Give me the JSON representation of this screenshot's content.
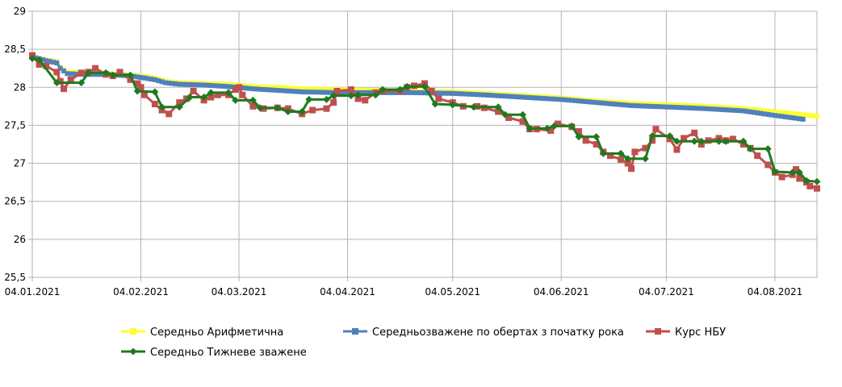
{
  "chart_data": {
    "type": "line",
    "title": "",
    "xlabel": "",
    "ylabel": "",
    "ylim": [
      25.5,
      29
    ],
    "y_ticks": [
      "25,5",
      "26",
      "26,5",
      "27",
      "27,5",
      "28",
      "28,5",
      "29"
    ],
    "y_tick_values": [
      25.5,
      26,
      26.5,
      27,
      27.5,
      28,
      28.5,
      29
    ],
    "x_range": [
      "2021-01-04",
      "2021-08-16"
    ],
    "x_ticks": [
      "04.01.2021",
      "04.02.2021",
      "04.03.2021",
      "04.04.2021",
      "04.05.2021",
      "04.06.2021",
      "04.07.2021",
      "04.08.2021"
    ],
    "x_tick_dates": [
      "2021-01-04",
      "2021-02-04",
      "2021-03-04",
      "2021-04-04",
      "2021-05-04",
      "2021-06-04",
      "2021-07-04",
      "2021-08-04"
    ],
    "grid": true,
    "legend_position": "bottom",
    "series": [
      {
        "name": "Середньо Арифметична",
        "color": "#ffff33",
        "marker": "square",
        "points": [
          [
            "2021-01-04",
            28.4
          ],
          [
            "2021-01-08",
            28.36
          ],
          [
            "2021-01-11",
            28.34
          ],
          [
            "2021-01-12",
            28.26
          ],
          [
            "2021-01-14",
            28.2
          ],
          [
            "2021-01-18",
            28.19
          ],
          [
            "2021-01-25",
            28.18
          ],
          [
            "2021-02-01",
            28.16
          ],
          [
            "2021-02-04",
            28.15
          ],
          [
            "2021-02-08",
            28.12
          ],
          [
            "2021-02-11",
            28.08
          ],
          [
            "2021-02-15",
            28.06
          ],
          [
            "2021-02-22",
            28.05
          ],
          [
            "2021-03-01",
            28.04
          ],
          [
            "2021-03-08",
            28.01
          ],
          [
            "2021-03-15",
            28.0
          ],
          [
            "2021-03-22",
            27.98
          ],
          [
            "2021-04-01",
            27.97
          ],
          [
            "2021-04-12",
            27.96
          ],
          [
            "2021-04-22",
            27.95
          ],
          [
            "2021-05-04",
            27.94
          ],
          [
            "2021-05-13",
            27.92
          ],
          [
            "2021-05-24",
            27.89
          ],
          [
            "2021-06-04",
            27.86
          ],
          [
            "2021-06-14",
            27.82
          ],
          [
            "2021-06-24",
            27.79
          ],
          [
            "2021-07-05",
            27.77
          ],
          [
            "2021-07-15",
            27.75
          ],
          [
            "2021-07-26",
            27.72
          ],
          [
            "2021-08-04",
            27.68
          ],
          [
            "2021-08-12",
            27.64
          ],
          [
            "2021-08-16",
            27.62
          ]
        ]
      },
      {
        "name": "Середньозважене по обертах з початку рока",
        "color": "#4f81bd",
        "marker": "square",
        "points": [
          [
            "2021-01-04",
            28.4
          ],
          [
            "2021-01-08",
            28.35
          ],
          [
            "2021-01-11",
            28.32
          ],
          [
            "2021-01-12",
            28.25
          ],
          [
            "2021-01-14",
            28.18
          ],
          [
            "2021-01-18",
            28.17
          ],
          [
            "2021-01-25",
            28.17
          ],
          [
            "2021-02-01",
            28.15
          ],
          [
            "2021-02-04",
            28.13
          ],
          [
            "2021-02-08",
            28.1
          ],
          [
            "2021-02-11",
            28.06
          ],
          [
            "2021-02-15",
            28.04
          ],
          [
            "2021-02-22",
            28.03
          ],
          [
            "2021-03-01",
            28.01
          ],
          [
            "2021-03-08",
            27.98
          ],
          [
            "2021-03-15",
            27.96
          ],
          [
            "2021-03-22",
            27.94
          ],
          [
            "2021-04-01",
            27.93
          ],
          [
            "2021-04-12",
            27.93
          ],
          [
            "2021-04-22",
            27.93
          ],
          [
            "2021-05-04",
            27.92
          ],
          [
            "2021-05-13",
            27.9
          ],
          [
            "2021-05-24",
            27.87
          ],
          [
            "2021-06-04",
            27.84
          ],
          [
            "2021-06-14",
            27.8
          ],
          [
            "2021-06-24",
            27.76
          ],
          [
            "2021-07-05",
            27.74
          ],
          [
            "2021-07-15",
            27.72
          ],
          [
            "2021-07-26",
            27.69
          ],
          [
            "2021-08-04",
            27.63
          ],
          [
            "2021-08-12",
            27.58
          ]
        ]
      },
      {
        "name": "Курс НБУ",
        "color": "#c0504d",
        "marker": "square",
        "points": [
          [
            "2021-01-04",
            28.42
          ],
          [
            "2021-01-06",
            28.3
          ],
          [
            "2021-01-08",
            28.28
          ],
          [
            "2021-01-11",
            28.2
          ],
          [
            "2021-01-12",
            28.08
          ],
          [
            "2021-01-13",
            27.98
          ],
          [
            "2021-01-15",
            28.1
          ],
          [
            "2021-01-18",
            28.19
          ],
          [
            "2021-01-20",
            28.2
          ],
          [
            "2021-01-22",
            28.25
          ],
          [
            "2021-01-25",
            28.17
          ],
          [
            "2021-01-27",
            28.15
          ],
          [
            "2021-01-29",
            28.2
          ],
          [
            "2021-02-01",
            28.1
          ],
          [
            "2021-02-03",
            28.05
          ],
          [
            "2021-02-04",
            28.0
          ],
          [
            "2021-02-05",
            27.9
          ],
          [
            "2021-02-08",
            27.78
          ],
          [
            "2021-02-10",
            27.7
          ],
          [
            "2021-02-12",
            27.65
          ],
          [
            "2021-02-15",
            27.8
          ],
          [
            "2021-02-17",
            27.85
          ],
          [
            "2021-02-19",
            27.95
          ],
          [
            "2021-02-22",
            27.83
          ],
          [
            "2021-02-24",
            27.87
          ],
          [
            "2021-02-26",
            27.9
          ],
          [
            "2021-03-01",
            27.9
          ],
          [
            "2021-03-03",
            27.97
          ],
          [
            "2021-03-04",
            28.0
          ],
          [
            "2021-03-05",
            27.9
          ],
          [
            "2021-03-08",
            27.75
          ],
          [
            "2021-03-11",
            27.72
          ],
          [
            "2021-03-15",
            27.73
          ],
          [
            "2021-03-18",
            27.72
          ],
          [
            "2021-03-22",
            27.65
          ],
          [
            "2021-03-25",
            27.7
          ],
          [
            "2021-03-29",
            27.72
          ],
          [
            "2021-03-31",
            27.8
          ],
          [
            "2021-04-01",
            27.95
          ],
          [
            "2021-04-05",
            27.97
          ],
          [
            "2021-04-07",
            27.85
          ],
          [
            "2021-04-09",
            27.83
          ],
          [
            "2021-04-12",
            27.93
          ],
          [
            "2021-04-14",
            27.95
          ],
          [
            "2021-04-19",
            27.95
          ],
          [
            "2021-04-21",
            28.0
          ],
          [
            "2021-04-23",
            28.02
          ],
          [
            "2021-04-26",
            28.05
          ],
          [
            "2021-04-28",
            27.95
          ],
          [
            "2021-04-30",
            27.85
          ],
          [
            "2021-05-04",
            27.8
          ],
          [
            "2021-05-07",
            27.75
          ],
          [
            "2021-05-11",
            27.75
          ],
          [
            "2021-05-13",
            27.73
          ],
          [
            "2021-05-17",
            27.68
          ],
          [
            "2021-05-20",
            27.6
          ],
          [
            "2021-05-24",
            27.55
          ],
          [
            "2021-05-26",
            27.45
          ],
          [
            "2021-05-28",
            27.45
          ],
          [
            "2021-06-01",
            27.43
          ],
          [
            "2021-06-03",
            27.52
          ],
          [
            "2021-06-07",
            27.48
          ],
          [
            "2021-06-09",
            27.42
          ],
          [
            "2021-06-11",
            27.3
          ],
          [
            "2021-06-14",
            27.25
          ],
          [
            "2021-06-16",
            27.15
          ],
          [
            "2021-06-18",
            27.1
          ],
          [
            "2021-06-21",
            27.05
          ],
          [
            "2021-06-23",
            27.0
          ],
          [
            "2021-06-24",
            26.93
          ],
          [
            "2021-06-25",
            27.15
          ],
          [
            "2021-06-28",
            27.2
          ],
          [
            "2021-06-30",
            27.3
          ],
          [
            "2021-07-01",
            27.45
          ],
          [
            "2021-07-05",
            27.32
          ],
          [
            "2021-07-07",
            27.18
          ],
          [
            "2021-07-09",
            27.33
          ],
          [
            "2021-07-12",
            27.4
          ],
          [
            "2021-07-14",
            27.25
          ],
          [
            "2021-07-16",
            27.3
          ],
          [
            "2021-07-19",
            27.33
          ],
          [
            "2021-07-21",
            27.3
          ],
          [
            "2021-07-23",
            27.32
          ],
          [
            "2021-07-26",
            27.25
          ],
          [
            "2021-07-28",
            27.2
          ],
          [
            "2021-07-30",
            27.1
          ],
          [
            "2021-08-02",
            26.98
          ],
          [
            "2021-08-04",
            26.88
          ],
          [
            "2021-08-06",
            26.82
          ],
          [
            "2021-08-09",
            26.85
          ],
          [
            "2021-08-10",
            26.92
          ],
          [
            "2021-08-11",
            26.8
          ],
          [
            "2021-08-13",
            26.75
          ],
          [
            "2021-08-14",
            26.7
          ],
          [
            "2021-08-16",
            26.67
          ]
        ]
      },
      {
        "name": "Середньо Тижневе зважене",
        "color": "#1f7a1f",
        "marker": "diamond",
        "points": [
          [
            "2021-01-04",
            28.38
          ],
          [
            "2021-01-06",
            28.36
          ],
          [
            "2021-01-11",
            28.06
          ],
          [
            "2021-01-18",
            28.06
          ],
          [
            "2021-01-20",
            28.19
          ],
          [
            "2021-01-25",
            28.19
          ],
          [
            "2021-01-27",
            28.16
          ],
          [
            "2021-02-01",
            28.16
          ],
          [
            "2021-02-03",
            27.95
          ],
          [
            "2021-02-08",
            27.94
          ],
          [
            "2021-02-10",
            27.74
          ],
          [
            "2021-02-15",
            27.74
          ],
          [
            "2021-02-18",
            27.87
          ],
          [
            "2021-02-22",
            27.87
          ],
          [
            "2021-02-24",
            27.93
          ],
          [
            "2021-03-01",
            27.93
          ],
          [
            "2021-03-03",
            27.83
          ],
          [
            "2021-03-08",
            27.83
          ],
          [
            "2021-03-10",
            27.73
          ],
          [
            "2021-03-15",
            27.73
          ],
          [
            "2021-03-18",
            27.68
          ],
          [
            "2021-03-22",
            27.68
          ],
          [
            "2021-03-24",
            27.84
          ],
          [
            "2021-03-29",
            27.84
          ],
          [
            "2021-03-31",
            27.89
          ],
          [
            "2021-04-05",
            27.89
          ],
          [
            "2021-04-07",
            27.9
          ],
          [
            "2021-04-12",
            27.9
          ],
          [
            "2021-04-14",
            27.97
          ],
          [
            "2021-04-19",
            27.97
          ],
          [
            "2021-04-21",
            28.01
          ],
          [
            "2021-04-26",
            28.01
          ],
          [
            "2021-04-29",
            27.78
          ],
          [
            "2021-05-04",
            27.77
          ],
          [
            "2021-05-10",
            27.74
          ],
          [
            "2021-05-17",
            27.74
          ],
          [
            "2021-05-19",
            27.64
          ],
          [
            "2021-05-24",
            27.64
          ],
          [
            "2021-05-26",
            27.46
          ],
          [
            "2021-05-31",
            27.46
          ],
          [
            "2021-06-02",
            27.49
          ],
          [
            "2021-06-07",
            27.49
          ],
          [
            "2021-06-09",
            27.35
          ],
          [
            "2021-06-14",
            27.35
          ],
          [
            "2021-06-16",
            27.13
          ],
          [
            "2021-06-21",
            27.13
          ],
          [
            "2021-06-23",
            27.06
          ],
          [
            "2021-06-28",
            27.06
          ],
          [
            "2021-06-30",
            27.36
          ],
          [
            "2021-07-05",
            27.36
          ],
          [
            "2021-07-07",
            27.29
          ],
          [
            "2021-07-12",
            27.29
          ],
          [
            "2021-07-14",
            27.29
          ],
          [
            "2021-07-19",
            27.29
          ],
          [
            "2021-07-21",
            27.29
          ],
          [
            "2021-07-26",
            27.29
          ],
          [
            "2021-07-28",
            27.19
          ],
          [
            "2021-08-02",
            27.19
          ],
          [
            "2021-08-04",
            26.89
          ],
          [
            "2021-08-09",
            26.88
          ],
          [
            "2021-08-11",
            26.88
          ],
          [
            "2021-08-13",
            26.77
          ],
          [
            "2021-08-16",
            26.76
          ]
        ]
      }
    ]
  }
}
